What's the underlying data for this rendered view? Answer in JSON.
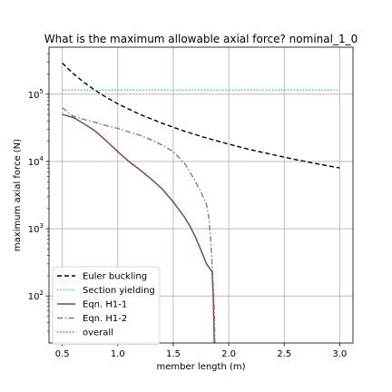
{
  "chart_data": {
    "type": "line",
    "title": "What is the maximum allowable axial force? nominal_1_0",
    "xlabel": "member length (m)",
    "ylabel": "maximum axial force (N)",
    "xlim": [
      0.38,
      3.12
    ],
    "ylim": [
      20,
      500000
    ],
    "yscale": "log",
    "grid": true,
    "legend_position": "bottom-left",
    "x_ticks": [
      {
        "value": 0.5,
        "label": "0.5"
      },
      {
        "value": 1.0,
        "label": "1.0"
      },
      {
        "value": 1.5,
        "label": "1.5"
      },
      {
        "value": 2.0,
        "label": "2.0"
      },
      {
        "value": 2.5,
        "label": "2.5"
      },
      {
        "value": 3.0,
        "label": "3.0"
      }
    ],
    "y_ticks": [
      {
        "value": 100,
        "base": "10",
        "exp": "2"
      },
      {
        "value": 1000,
        "base": "10",
        "exp": "3"
      },
      {
        "value": 10000,
        "base": "10",
        "exp": "4"
      },
      {
        "value": 100000,
        "base": "10",
        "exp": "5"
      }
    ],
    "series": [
      {
        "name": "Euler buckling",
        "color": "#000000",
        "dash": "dashed",
        "points": [
          [
            0.5,
            290000
          ],
          [
            0.6,
            201000
          ],
          [
            0.7,
            148000
          ],
          [
            0.8,
            113000
          ],
          [
            0.9,
            89000
          ],
          [
            1.0,
            72000
          ],
          [
            1.2,
            50000
          ],
          [
            1.4,
            37000
          ],
          [
            1.6,
            28200
          ],
          [
            1.8,
            22300
          ],
          [
            2.0,
            18100
          ],
          [
            2.2,
            14900
          ],
          [
            2.4,
            12600
          ],
          [
            2.6,
            10700
          ],
          [
            2.8,
            9200
          ],
          [
            3.0,
            8000
          ]
        ]
      },
      {
        "name": "Section yielding",
        "color": "#17becf",
        "dash": "dotted",
        "points": [
          [
            0.5,
            115000
          ],
          [
            3.0,
            115000
          ]
        ]
      },
      {
        "name": "Eqn. H1-1",
        "color": "#555555",
        "dash": "solid",
        "points": [
          [
            0.5,
            50000
          ],
          [
            0.6,
            45000
          ],
          [
            0.7,
            36000
          ],
          [
            0.8,
            28000
          ],
          [
            0.9,
            20000
          ],
          [
            1.0,
            14000
          ],
          [
            1.1,
            10000
          ],
          [
            1.2,
            7500
          ],
          [
            1.3,
            5500
          ],
          [
            1.4,
            3900
          ],
          [
            1.5,
            2500
          ],
          [
            1.6,
            1500
          ],
          [
            1.65,
            1100
          ],
          [
            1.7,
            750
          ],
          [
            1.75,
            480
          ],
          [
            1.8,
            300
          ],
          [
            1.85,
            230
          ],
          [
            1.86,
            100
          ],
          [
            1.87,
            20
          ]
        ]
      },
      {
        "name": "Eqn. H1-2",
        "color": "#7f7f7f",
        "dash": "dashdot",
        "points": [
          [
            0.5,
            63000
          ],
          [
            0.6,
            47000
          ],
          [
            0.7,
            42000
          ],
          [
            0.8,
            38000
          ],
          [
            0.9,
            34000
          ],
          [
            1.0,
            31000
          ],
          [
            1.1,
            27500
          ],
          [
            1.2,
            24500
          ],
          [
            1.3,
            21000
          ],
          [
            1.4,
            17500
          ],
          [
            1.5,
            14000
          ],
          [
            1.6,
            9500
          ],
          [
            1.65,
            7000
          ],
          [
            1.7,
            5000
          ],
          [
            1.75,
            3500
          ],
          [
            1.8,
            2300
          ],
          [
            1.82,
            1500
          ],
          [
            1.84,
            600
          ],
          [
            1.86,
            150
          ],
          [
            1.87,
            60
          ],
          [
            1.875,
            20
          ]
        ]
      },
      {
        "name": "overall",
        "color": "#d62728",
        "dash": "dotted",
        "points": [
          [
            0.5,
            50000
          ],
          [
            0.6,
            45000
          ],
          [
            0.7,
            36000
          ],
          [
            0.8,
            28000
          ],
          [
            0.9,
            20000
          ],
          [
            1.0,
            14000
          ],
          [
            1.1,
            10000
          ],
          [
            1.2,
            7500
          ],
          [
            1.3,
            5500
          ],
          [
            1.4,
            3900
          ],
          [
            1.5,
            2500
          ],
          [
            1.6,
            1500
          ],
          [
            1.65,
            1100
          ],
          [
            1.7,
            750
          ],
          [
            1.75,
            480
          ],
          [
            1.8,
            300
          ],
          [
            1.85,
            230
          ],
          [
            1.86,
            100
          ],
          [
            1.87,
            20
          ]
        ]
      }
    ]
  }
}
